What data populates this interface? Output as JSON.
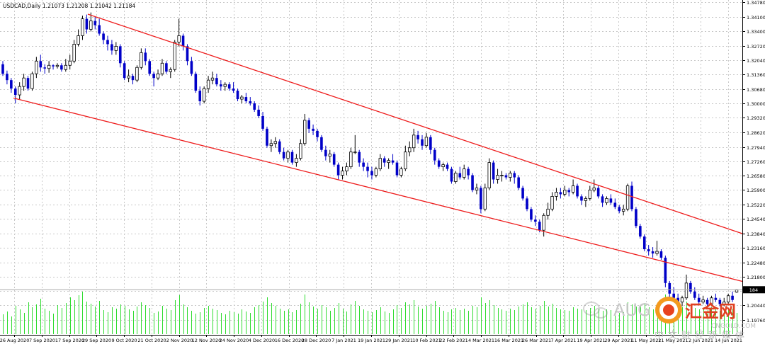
{
  "header": {
    "title": "USDCAD,Daily  1.21073 1.21208 1.21042 1.21184"
  },
  "watermark": {
    "logo_text": "AUG",
    "cn_text": "汇金网",
    "url": "CNGOLD.COM",
    "tagline": "中文财经新媒体"
  },
  "chart_data": {
    "type": "candlestick",
    "title": "USDCAD,Daily  1.21073 1.21208 1.21042 1.21184",
    "symbol": "USDCAD",
    "timeframe": "Daily",
    "last_bar": {
      "open": 1.21073,
      "high": 1.21208,
      "low": 1.21042,
      "close": 1.21184
    },
    "current_price_label": "184",
    "ylim": [
      1.1905,
      1.3489
    ],
    "y_ticks": [
      1.3478,
      1.341,
      1.334,
      1.3272,
      1.3204,
      1.3136,
      1.3068,
      1.3,
      1.2932,
      1.2862,
      1.2794,
      1.2726,
      1.2658,
      1.259,
      1.2522,
      1.2454,
      1.2384,
      1.2316,
      1.2248,
      1.218,
      1.2112,
      1.2044,
      1.1976
    ],
    "y_tick_labels": [
      "1.34780",
      "1.34100",
      "1.33400",
      "1.32720",
      "1.32040",
      "1.31360",
      "1.30680",
      "1.30000",
      "1.29320",
      "1.28620",
      "1.27940",
      "1.27260",
      "1.26580",
      "1.25900",
      "1.25220",
      "1.24540",
      "1.23840",
      "1.23160",
      "1.22480",
      "1.21800",
      "",
      "1.20440",
      "1.19760"
    ],
    "x_tick_labels": [
      "26 Aug 2020",
      "7 Sep 2020",
      "17 Sep 2020",
      "29 Sep 2020",
      "9 Oct 2020",
      "21 Oct 2020",
      "2 Nov 2020",
      "12 Nov 2020",
      "24 Nov 2020",
      "4 Dec 2020",
      "16 Dec 2020",
      "28 Dec 2020",
      "7 Jan 2021",
      "19 Jan 2021",
      "29 Jan 2021",
      "10 Feb 2021",
      "22 Feb 2021",
      "4 Mar 2021",
      "16 Mar 2021",
      "26 Mar 2021",
      "7 Apr 2021",
      "19 Apr 2021",
      "29 Apr 2021",
      "11 May 2021",
      "21 May 2021",
      "2 Jun 2021",
      "14 Jun 2021"
    ],
    "bars": [
      [
        1.3185,
        1.32,
        1.313,
        1.314
      ],
      [
        1.314,
        1.3155,
        1.309,
        1.311
      ],
      [
        1.311,
        1.312,
        1.305,
        1.307
      ],
      [
        1.307,
        1.308,
        1.3,
        1.304
      ],
      [
        1.304,
        1.31,
        1.302,
        1.308
      ],
      [
        1.308,
        1.314,
        1.306,
        1.312
      ],
      [
        1.312,
        1.313,
        1.306,
        1.307
      ],
      [
        1.307,
        1.315,
        1.306,
        1.314
      ],
      [
        1.314,
        1.322,
        1.312,
        1.32
      ],
      [
        1.32,
        1.323,
        1.315,
        1.317
      ],
      [
        1.317,
        1.3185,
        1.314,
        1.3165
      ],
      [
        1.3165,
        1.32,
        1.3145,
        1.318
      ],
      [
        1.318,
        1.3185,
        1.316,
        1.3175
      ],
      [
        1.3175,
        1.319,
        1.3165,
        1.318
      ],
      [
        1.318,
        1.319,
        1.315,
        1.316
      ],
      [
        1.316,
        1.321,
        1.315,
        1.318
      ],
      [
        1.318,
        1.323,
        1.316,
        1.32
      ],
      [
        1.32,
        1.33,
        1.319,
        1.328
      ],
      [
        1.328,
        1.335,
        1.327,
        1.332
      ],
      [
        1.332,
        1.3415,
        1.33,
        1.34
      ],
      [
        1.34,
        1.342,
        1.333,
        1.335
      ],
      [
        1.335,
        1.343,
        1.334,
        1.339
      ],
      [
        1.339,
        1.341,
        1.335,
        1.337
      ],
      [
        1.337,
        1.34,
        1.332,
        1.333
      ],
      [
        1.333,
        1.334,
        1.328,
        1.33
      ],
      [
        1.33,
        1.332,
        1.325,
        1.328
      ],
      [
        1.328,
        1.33,
        1.323,
        1.325
      ],
      [
        1.325,
        1.329,
        1.323,
        1.327
      ],
      [
        1.327,
        1.328,
        1.317,
        1.319
      ],
      [
        1.319,
        1.32,
        1.311,
        1.312
      ],
      [
        1.312,
        1.316,
        1.31,
        1.313
      ],
      [
        1.313,
        1.314,
        1.309,
        1.311
      ],
      [
        1.311,
        1.318,
        1.31,
        1.317
      ],
      [
        1.317,
        1.326,
        1.316,
        1.324
      ],
      [
        1.324,
        1.326,
        1.318,
        1.32
      ],
      [
        1.32,
        1.321,
        1.313,
        1.314
      ],
      [
        1.314,
        1.315,
        1.308,
        1.312
      ],
      [
        1.312,
        1.316,
        1.311,
        1.314
      ],
      [
        1.314,
        1.321,
        1.313,
        1.319
      ],
      [
        1.319,
        1.32,
        1.314,
        1.315
      ],
      [
        1.315,
        1.317,
        1.312,
        1.316
      ],
      [
        1.316,
        1.33,
        1.315,
        1.329
      ],
      [
        1.329,
        1.34,
        1.327,
        1.332
      ],
      [
        1.332,
        1.333,
        1.325,
        1.327
      ],
      [
        1.327,
        1.328,
        1.318,
        1.32
      ],
      [
        1.32,
        1.322,
        1.313,
        1.314
      ],
      [
        1.314,
        1.315,
        1.305,
        1.306
      ],
      [
        1.306,
        1.308,
        1.299,
        1.301
      ],
      [
        1.301,
        1.308,
        1.3,
        1.307
      ],
      [
        1.307,
        1.313,
        1.305,
        1.311
      ],
      [
        1.311,
        1.315,
        1.309,
        1.312
      ],
      [
        1.312,
        1.314,
        1.308,
        1.309
      ],
      [
        1.309,
        1.311,
        1.306,
        1.308
      ],
      [
        1.308,
        1.31,
        1.306,
        1.309
      ],
      [
        1.309,
        1.31,
        1.306,
        1.307
      ],
      [
        1.307,
        1.31,
        1.305,
        1.306
      ],
      [
        1.306,
        1.307,
        1.301,
        1.302
      ],
      [
        1.302,
        1.304,
        1.3,
        1.303
      ],
      [
        1.303,
        1.305,
        1.3,
        1.301
      ],
      [
        1.301,
        1.303,
        1.299,
        1.3
      ],
      [
        1.3,
        1.301,
        1.296,
        1.297
      ],
      [
        1.297,
        1.299,
        1.293,
        1.294
      ],
      [
        1.294,
        1.296,
        1.287,
        1.288
      ],
      [
        1.288,
        1.289,
        1.279,
        1.28
      ],
      [
        1.28,
        1.283,
        1.277,
        1.281
      ],
      [
        1.281,
        1.284,
        1.279,
        1.282
      ],
      [
        1.282,
        1.283,
        1.276,
        1.277
      ],
      [
        1.277,
        1.279,
        1.273,
        1.274
      ],
      [
        1.274,
        1.278,
        1.272,
        1.277
      ],
      [
        1.277,
        1.278,
        1.271,
        1.272
      ],
      [
        1.272,
        1.276,
        1.27,
        1.274
      ],
      [
        1.274,
        1.283,
        1.273,
        1.281
      ],
      [
        1.281,
        1.295,
        1.28,
        1.292
      ],
      [
        1.292,
        1.293,
        1.286,
        1.288
      ],
      [
        1.288,
        1.29,
        1.285,
        1.287
      ],
      [
        1.287,
        1.288,
        1.282,
        1.284
      ],
      [
        1.284,
        1.285,
        1.277,
        1.278
      ],
      [
        1.278,
        1.28,
        1.273,
        1.275
      ],
      [
        1.275,
        1.278,
        1.272,
        1.276
      ],
      [
        1.276,
        1.277,
        1.27,
        1.271
      ],
      [
        1.271,
        1.272,
        1.264,
        1.266
      ],
      [
        1.266,
        1.27,
        1.264,
        1.268
      ],
      [
        1.268,
        1.272,
        1.266,
        1.27
      ],
      [
        1.27,
        1.279,
        1.269,
        1.277
      ],
      [
        1.277,
        1.285,
        1.276,
        1.277
      ],
      [
        1.277,
        1.278,
        1.27,
        1.272
      ],
      [
        1.272,
        1.274,
        1.268,
        1.27
      ],
      [
        1.27,
        1.272,
        1.265,
        1.268
      ],
      [
        1.268,
        1.27,
        1.264,
        1.266
      ],
      [
        1.266,
        1.27,
        1.265,
        1.269
      ],
      [
        1.269,
        1.276,
        1.268,
        1.274
      ],
      [
        1.274,
        1.275,
        1.27,
        1.272
      ],
      [
        1.272,
        1.274,
        1.269,
        1.273
      ],
      [
        1.273,
        1.276,
        1.271,
        1.272
      ],
      [
        1.272,
        1.273,
        1.265,
        1.266
      ],
      [
        1.266,
        1.27,
        1.265,
        1.269
      ],
      [
        1.269,
        1.28,
        1.268,
        1.277
      ],
      [
        1.277,
        1.282,
        1.275,
        1.279
      ],
      [
        1.279,
        1.288,
        1.277,
        1.285
      ],
      [
        1.285,
        1.287,
        1.281,
        1.283
      ],
      [
        1.283,
        1.285,
        1.278,
        1.28
      ],
      [
        1.28,
        1.286,
        1.279,
        1.284
      ],
      [
        1.284,
        1.285,
        1.276,
        1.278
      ],
      [
        1.278,
        1.279,
        1.271,
        1.273
      ],
      [
        1.273,
        1.274,
        1.269,
        1.27
      ],
      [
        1.27,
        1.272,
        1.268,
        1.271
      ],
      [
        1.271,
        1.272,
        1.268,
        1.269
      ],
      [
        1.269,
        1.27,
        1.262,
        1.263
      ],
      [
        1.263,
        1.268,
        1.262,
        1.267
      ],
      [
        1.267,
        1.27,
        1.264,
        1.265
      ],
      [
        1.265,
        1.271,
        1.264,
        1.269
      ],
      [
        1.269,
        1.27,
        1.264,
        1.266
      ],
      [
        1.266,
        1.267,
        1.258,
        1.259
      ],
      [
        1.259,
        1.262,
        1.257,
        1.26
      ],
      [
        1.26,
        1.261,
        1.248,
        1.25
      ],
      [
        1.25,
        1.262,
        1.249,
        1.26
      ],
      [
        1.26,
        1.274,
        1.259,
        1.272
      ],
      [
        1.272,
        1.273,
        1.262,
        1.264
      ],
      [
        1.264,
        1.269,
        1.262,
        1.266
      ],
      [
        1.266,
        1.268,
        1.263,
        1.266
      ],
      [
        1.266,
        1.267,
        1.264,
        1.265
      ],
      [
        1.265,
        1.268,
        1.263,
        1.267
      ],
      [
        1.267,
        1.268,
        1.262,
        1.265
      ],
      [
        1.265,
        1.266,
        1.259,
        1.26
      ],
      [
        1.26,
        1.261,
        1.254,
        1.255
      ],
      [
        1.255,
        1.256,
        1.249,
        1.25
      ],
      [
        1.25,
        1.251,
        1.244,
        1.245
      ],
      [
        1.245,
        1.247,
        1.242,
        1.244
      ],
      [
        1.244,
        1.245,
        1.239,
        1.24
      ],
      [
        1.24,
        1.248,
        1.237,
        1.247
      ],
      [
        1.247,
        1.253,
        1.245,
        1.25
      ],
      [
        1.25,
        1.258,
        1.249,
        1.256
      ],
      [
        1.256,
        1.26,
        1.254,
        1.258
      ],
      [
        1.258,
        1.26,
        1.255,
        1.257
      ],
      [
        1.257,
        1.261,
        1.256,
        1.259
      ],
      [
        1.259,
        1.26,
        1.256,
        1.258
      ],
      [
        1.258,
        1.264,
        1.257,
        1.261
      ],
      [
        1.261,
        1.262,
        1.255,
        1.256
      ],
      [
        1.256,
        1.257,
        1.252,
        1.254
      ],
      [
        1.254,
        1.256,
        1.251,
        1.255
      ],
      [
        1.255,
        1.261,
        1.254,
        1.259
      ],
      [
        1.259,
        1.264,
        1.258,
        1.26
      ],
      [
        1.26,
        1.261,
        1.255,
        1.256
      ],
      [
        1.256,
        1.257,
        1.251,
        1.253
      ],
      [
        1.253,
        1.256,
        1.252,
        1.255
      ],
      [
        1.255,
        1.257,
        1.252,
        1.253
      ],
      [
        1.253,
        1.255,
        1.25,
        1.251
      ],
      [
        1.251,
        1.252,
        1.248,
        1.249
      ],
      [
        1.249,
        1.252,
        1.247,
        1.25
      ],
      [
        1.25,
        1.262,
        1.249,
        1.261
      ],
      [
        1.261,
        1.263,
        1.249,
        1.25
      ],
      [
        1.25,
        1.251,
        1.241,
        1.242
      ],
      [
        1.242,
        1.243,
        1.236,
        1.237
      ],
      [
        1.237,
        1.238,
        1.23,
        1.231
      ],
      [
        1.231,
        1.233,
        1.228,
        1.23
      ],
      [
        1.23,
        1.232,
        1.227,
        1.229
      ],
      [
        1.229,
        1.235,
        1.228,
        1.23
      ],
      [
        1.23,
        1.231,
        1.226,
        1.227
      ],
      [
        1.227,
        1.228,
        1.213,
        1.215
      ],
      [
        1.215,
        1.216,
        1.207,
        1.21
      ],
      [
        1.21,
        1.213,
        1.206,
        1.208
      ],
      [
        1.208,
        1.21,
        1.204,
        1.206
      ],
      [
        1.206,
        1.209,
        1.204,
        1.208
      ],
      [
        1.208,
        1.219,
        1.207,
        1.215
      ],
      [
        1.215,
        1.216,
        1.21,
        1.211
      ],
      [
        1.211,
        1.213,
        1.207,
        1.208
      ],
      [
        1.208,
        1.21,
        1.205,
        1.206
      ],
      [
        1.206,
        1.209,
        1.205,
        1.207
      ],
      [
        1.207,
        1.208,
        1.203,
        1.205
      ],
      [
        1.205,
        1.209,
        1.204,
        1.208
      ],
      [
        1.208,
        1.21,
        1.206,
        1.207
      ],
      [
        1.207,
        1.208,
        1.204,
        1.205
      ],
      [
        1.205,
        1.208,
        1.204,
        1.206
      ],
      [
        1.206,
        1.21,
        1.205,
        1.209
      ],
      [
        1.209,
        1.211,
        1.206,
        1.207
      ],
      [
        1.2107,
        1.2121,
        1.2104,
        1.2118
      ]
    ],
    "volume": [
      28,
      32,
      25,
      40,
      35,
      30,
      45,
      38,
      42,
      50,
      36,
      33,
      29,
      41,
      37,
      44,
      52,
      48,
      55,
      60,
      46,
      43,
      39,
      47,
      34,
      31,
      38,
      36,
      42,
      40,
      35,
      33,
      39,
      45,
      41,
      37,
      30,
      32,
      40,
      36,
      34,
      48,
      55,
      42,
      38,
      33,
      29,
      31,
      37,
      40,
      36,
      34,
      30,
      28,
      33,
      31,
      29,
      35,
      32,
      30,
      38,
      41,
      46,
      52,
      44,
      40,
      36,
      33,
      35,
      31,
      34,
      43,
      56,
      45,
      39,
      36,
      41,
      38,
      33,
      37,
      44,
      36,
      32,
      42,
      47,
      40,
      35,
      33,
      31,
      34,
      38,
      32,
      30,
      35,
      41,
      37,
      45,
      42,
      48,
      39,
      36,
      40,
      43,
      47,
      38,
      33,
      31,
      35,
      37,
      34,
      36,
      33,
      40,
      38,
      52,
      44,
      48,
      41,
      37,
      35,
      33,
      36,
      34,
      39,
      42,
      45,
      38,
      36,
      40,
      47,
      39,
      43,
      37,
      35,
      34,
      33,
      38,
      36,
      35,
      34,
      37,
      40,
      36,
      33,
      35,
      34,
      32,
      30,
      31,
      45,
      42,
      39,
      41,
      44,
      38,
      35,
      37,
      33,
      56,
      49,
      43,
      40,
      38,
      46,
      39,
      37,
      35,
      36,
      34,
      38,
      36,
      33,
      35,
      37,
      36,
      30
    ],
    "channel_upper": [
      [
        1.3422,
        124
      ],
      [
        1.2384,
        1048
      ]
    ],
    "channel_lower": [
      [
        1.3025,
        19
      ],
      [
        1.2158,
        1048
      ]
    ],
    "colors": {
      "bull": "#ffffff",
      "bear": "#0000c8",
      "outline": "#000000",
      "channel": "#ee1c1c",
      "volume": "#2fdc2f",
      "grid": "#c8c8c8"
    }
  }
}
